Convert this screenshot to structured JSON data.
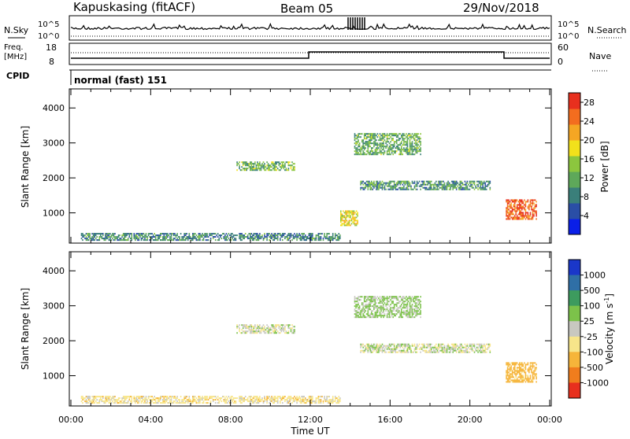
{
  "header": {
    "station": "Kapuskasing (fitACF)",
    "beam": "Beam 05",
    "date": "29/Nov/2018"
  },
  "panels": {
    "nsky_label": "N.Sky",
    "nsearch_label": "N.Search",
    "freq_label_1": "Freq.",
    "freq_label_2": "[MHz]",
    "nave_label": "Nave",
    "cpid_label": "CPID",
    "cpid_value": "normal (fast) 151",
    "nsky_ticks": [
      "10^5",
      "10^0"
    ],
    "nsearch_ticks": [
      "10^5",
      "10^0"
    ],
    "freq_ticks": [
      "18",
      "8"
    ],
    "nave_ticks": [
      "60",
      "0"
    ]
  },
  "colors": {
    "power": [
      "#0a1fe8",
      "#2a4ea6",
      "#3a7f7a",
      "#5ea85a",
      "#8cc63e",
      "#f2e11b",
      "#f5a623",
      "#f36d1f",
      "#e8301e"
    ],
    "velocity": [
      "#1a37c9",
      "#2f6fa6",
      "#3d9b5e",
      "#7cc24a",
      "#c8c8c0",
      "#f7e58a",
      "#f6b53a",
      "#f07d1d",
      "#e8301e"
    ]
  },
  "chart_data": [
    {
      "type": "heatmap",
      "name": "power",
      "xlabel": "Time UT",
      "ylabel": "Slant Range [km]",
      "x_ticks": [
        "00:00",
        "04:00",
        "08:00",
        "12:00",
        "16:00",
        "20:00",
        "00:00"
      ],
      "x_range_hours": [
        0,
        24
      ],
      "y_ticks": [
        1000,
        2000,
        3000,
        4000
      ],
      "y_range_km": [
        180,
        4500
      ],
      "colorbar_label": "Power [dB]",
      "colorbar_ticks": [
        4,
        8,
        12,
        16,
        20,
        24,
        28
      ],
      "colorbar_range": [
        0,
        30
      ],
      "regions": [
        {
          "t0": 0.5,
          "t1": 13.5,
          "r0": 200,
          "r1": 420,
          "power": 9
        },
        {
          "t0": 8.3,
          "t1": 11.2,
          "r0": 2200,
          "r1": 2450,
          "power": 13
        },
        {
          "t0": 14.2,
          "t1": 17.5,
          "r0": 2650,
          "r1": 3250,
          "power": 12
        },
        {
          "t0": 14.5,
          "t1": 21.0,
          "r0": 1650,
          "r1": 1900,
          "power": 10
        },
        {
          "t0": 21.8,
          "t1": 23.3,
          "r0": 800,
          "r1": 1350,
          "power": 26
        },
        {
          "t0": 13.5,
          "t1": 14.4,
          "r0": 620,
          "r1": 1050,
          "power": 18
        }
      ]
    },
    {
      "type": "heatmap",
      "name": "velocity",
      "xlabel": "Time UT",
      "ylabel": "Slant Range [km]",
      "x_ticks": [
        "00:00",
        "04:00",
        "08:00",
        "12:00",
        "16:00",
        "20:00",
        "00:00"
      ],
      "x_range_hours": [
        0,
        24
      ],
      "y_ticks": [
        1000,
        2000,
        3000,
        4000
      ],
      "y_range_km": [
        180,
        4500
      ],
      "colorbar_label": "Velocity [m s-1]",
      "colorbar_ticks": [
        "1000",
        "500",
        "100",
        "25",
        "-25",
        "-100",
        "-500",
        "-1000"
      ],
      "regions": [
        {
          "t0": 0.5,
          "t1": 13.5,
          "r0": 200,
          "r1": 420,
          "velocity": -60
        },
        {
          "t0": 8.3,
          "t1": 11.2,
          "r0": 2200,
          "r1": 2450,
          "velocity": 0
        },
        {
          "t0": 14.2,
          "t1": 17.5,
          "r0": 2650,
          "r1": 3250,
          "velocity": 40
        },
        {
          "t0": 14.5,
          "t1": 21.0,
          "r0": 1650,
          "r1": 1900,
          "velocity": 0
        },
        {
          "t0": 21.8,
          "t1": 23.3,
          "r0": 800,
          "r1": 1350,
          "velocity": -150
        }
      ]
    }
  ]
}
